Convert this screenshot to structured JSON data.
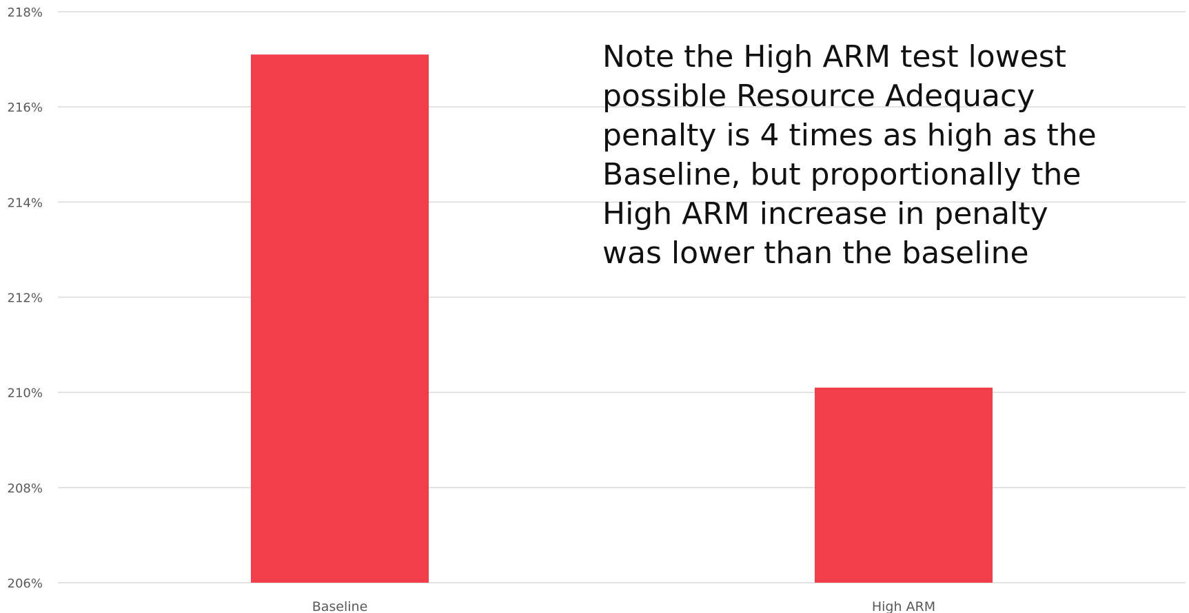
{
  "chart_data": {
    "type": "bar",
    "categories": [
      "Baseline",
      "High ARM"
    ],
    "values": [
      217.1,
      210.1
    ],
    "ylim": [
      206,
      218
    ],
    "yticks": [
      206,
      208,
      210,
      212,
      214,
      216,
      218
    ],
    "ytick_labels": [
      "206%",
      "208%",
      "210%",
      "212%",
      "214%",
      "216%",
      "218%"
    ],
    "bar_color": "#f23d4b",
    "grid": true,
    "title": "",
    "xlabel": "",
    "ylabel": "",
    "annotation": "Note the High ARM test lowest\npossible Resource Adequacy\npenalty is 4 times as high as the\nBaseline, but proportionally the\nHigh ARM increase in penalty\nwas lower than the baseline"
  }
}
